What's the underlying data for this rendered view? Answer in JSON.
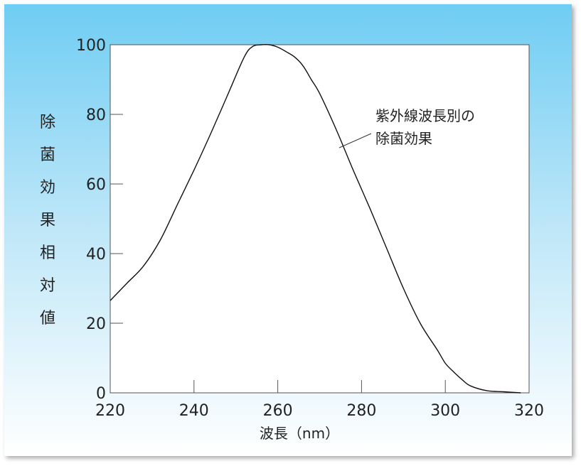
{
  "chart_data": {
    "type": "line",
    "title": "",
    "xlabel": "波長（nm）",
    "ylabel": "除菌効果相対値",
    "xlim": [
      220,
      320
    ],
    "ylim": [
      0,
      100
    ],
    "xticks": [
      220,
      240,
      260,
      280,
      300,
      320
    ],
    "yticks": [
      0,
      20,
      40,
      60,
      80,
      100
    ],
    "grid": false,
    "annotation": [
      "紫外線波長別の",
      "除菌効果"
    ],
    "series": [
      {
        "name": "",
        "x": [
          220,
          224,
          228,
          232,
          236,
          240,
          244,
          248,
          252,
          254,
          256,
          258,
          260,
          262,
          264,
          266,
          268,
          270,
          274,
          278,
          282,
          286,
          290,
          294,
          298,
          300,
          302,
          304,
          306,
          310,
          314,
          318
        ],
        "y": [
          26.5,
          31.5,
          36.5,
          44,
          54,
          64,
          74.5,
          85.5,
          96.5,
          99.5,
          100,
          100,
          99.3,
          98,
          96.5,
          94,
          90,
          86,
          75.5,
          64,
          53,
          41.5,
          30,
          20,
          12.5,
          8.5,
          6,
          3.8,
          2,
          0.6,
          0.3,
          0
        ]
      }
    ]
  }
}
